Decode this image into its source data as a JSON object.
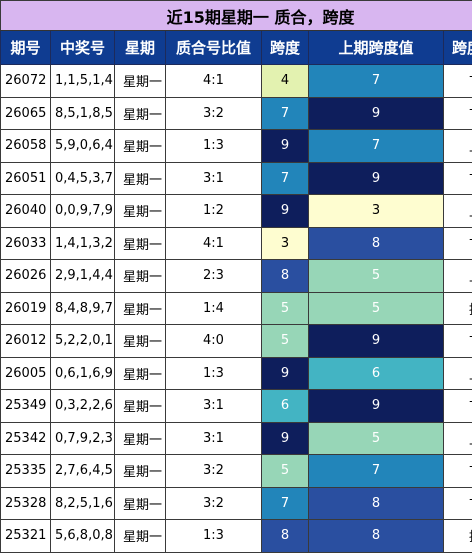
{
  "title": "近15期星期一 质合，跨度",
  "headers": [
    "期号",
    "中奖号",
    "星期",
    "质合号比值",
    "跨度",
    "上期跨度值",
    "跨度趋势"
  ],
  "colors": {
    "title_bg": "#d8b6f0",
    "header_bg": "#0f3c91",
    "span_scale": {
      "3": "#fefdd0",
      "4": "#e3f2b0",
      "5": "#97d6b7",
      "6": "#43b4c3",
      "7": "#2285ba",
      "8": "#2a4fa0",
      "9": "#0e1e5c"
    }
  },
  "rows": [
    {
      "period": "26072",
      "numbers": "1,1,5,1,4",
      "day": "星期一",
      "ratio": "4:1",
      "span": "4",
      "prev_span": "7",
      "trend": "下降"
    },
    {
      "period": "26065",
      "numbers": "8,5,1,8,5",
      "day": "星期一",
      "ratio": "3:2",
      "span": "7",
      "prev_span": "9",
      "trend": "下降"
    },
    {
      "period": "26058",
      "numbers": "5,9,0,6,4",
      "day": "星期一",
      "ratio": "1:3",
      "span": "9",
      "prev_span": "7",
      "trend": "上升"
    },
    {
      "period": "26051",
      "numbers": "0,4,5,3,7",
      "day": "星期一",
      "ratio": "3:1",
      "span": "7",
      "prev_span": "9",
      "trend": "下降"
    },
    {
      "period": "26040",
      "numbers": "0,0,9,7,9",
      "day": "星期一",
      "ratio": "1:2",
      "span": "9",
      "prev_span": "3",
      "trend": "上升"
    },
    {
      "period": "26033",
      "numbers": "1,4,1,3,2",
      "day": "星期一",
      "ratio": "4:1",
      "span": "3",
      "prev_span": "8",
      "trend": "下降"
    },
    {
      "period": "26026",
      "numbers": "2,9,1,4,4",
      "day": "星期一",
      "ratio": "2:3",
      "span": "8",
      "prev_span": "5",
      "trend": "上升"
    },
    {
      "period": "26019",
      "numbers": "8,4,8,9,7",
      "day": "星期一",
      "ratio": "1:4",
      "span": "5",
      "prev_span": "5",
      "trend": "持平"
    },
    {
      "period": "26012",
      "numbers": "5,2,2,0,1",
      "day": "星期一",
      "ratio": "4:0",
      "span": "5",
      "prev_span": "9",
      "trend": "下降"
    },
    {
      "period": "26005",
      "numbers": "0,6,1,6,9",
      "day": "星期一",
      "ratio": "1:3",
      "span": "9",
      "prev_span": "6",
      "trend": "上升"
    },
    {
      "period": "25349",
      "numbers": "0,3,2,2,6",
      "day": "星期一",
      "ratio": "3:1",
      "span": "6",
      "prev_span": "9",
      "trend": "下降"
    },
    {
      "period": "25342",
      "numbers": "0,7,9,2,3",
      "day": "星期一",
      "ratio": "3:1",
      "span": "9",
      "prev_span": "5",
      "trend": "上升"
    },
    {
      "period": "25335",
      "numbers": "2,7,6,4,5",
      "day": "星期一",
      "ratio": "3:2",
      "span": "5",
      "prev_span": "7",
      "trend": "下降"
    },
    {
      "period": "25328",
      "numbers": "8,2,5,1,6",
      "day": "星期一",
      "ratio": "3:2",
      "span": "7",
      "prev_span": "8",
      "trend": "下降"
    },
    {
      "period": "25321",
      "numbers": "5,6,8,0,8",
      "day": "星期一",
      "ratio": "1:3",
      "span": "8",
      "prev_span": "8",
      "trend": "持平"
    }
  ]
}
